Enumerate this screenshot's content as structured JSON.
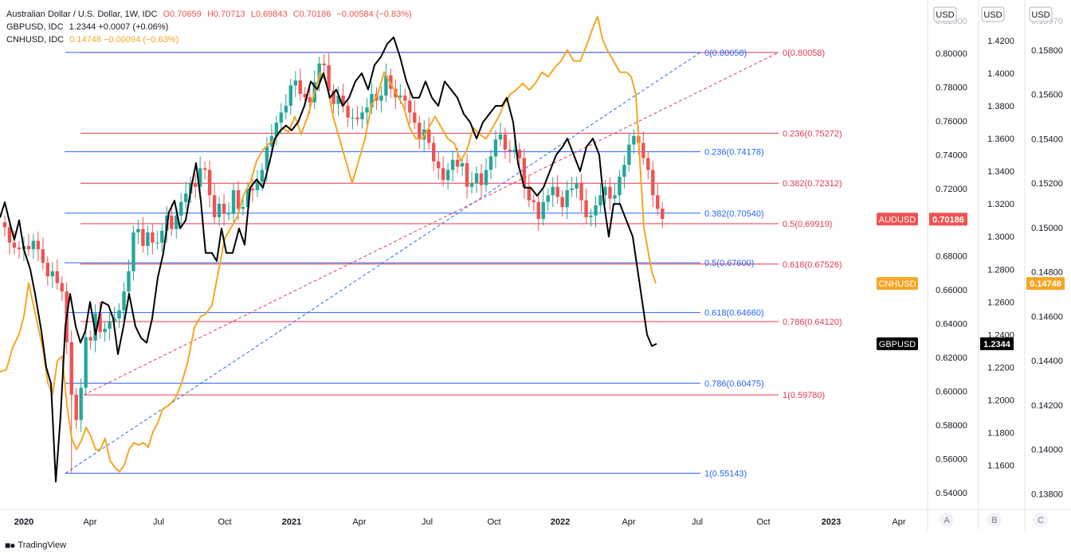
{
  "legend": {
    "row1": {
      "name": "Australian Dollar / U.S. Dollar, 1W, IDC",
      "o": "O0.70659",
      "h": "H0.70713",
      "l": "L0.69843",
      "c": "C0.70186",
      "chg": "−0.00584 (−0.83%)"
    },
    "row2": {
      "name": "GBPUSD, IDC",
      "val": "1.2344 +0.0007 (+0.06%)"
    },
    "row3": {
      "name": "CNHUSD, IDC",
      "val": "0.14748 −0.00094 (−0.63%)"
    }
  },
  "axis_units": [
    "USD",
    "USD",
    "USD"
  ],
  "scale_buttons": [
    "A",
    "B",
    "C"
  ],
  "footer": {
    "brand": "TradingView"
  },
  "colors": {
    "up": "#26a69a",
    "down": "#ef5350",
    "gbp": "#000000",
    "cnh": "#f5a623",
    "fib_red": "#e53951",
    "fib_blue": "#2962ff"
  },
  "chart_data": {
    "type": "candlestick-with-lines",
    "x_ticks": [
      "2020",
      "Apr",
      "Jul",
      "Oct",
      "2021",
      "Apr",
      "Jul",
      "Oct",
      "2022",
      "Apr",
      "Jul",
      "Oct",
      "2023",
      "Apr"
    ],
    "axes": {
      "A": {
        "range": [
          0.53,
          0.825
        ],
        "ticks": [
          "0.80000",
          "0.78000",
          "0.76000",
          "0.74000",
          "0.72000",
          "0.70000",
          "0.68000",
          "0.66000",
          "0.64000",
          "0.62000",
          "0.60000",
          "0.58000",
          "0.56000",
          "0.54000"
        ],
        "top_label": "0.82000"
      },
      "B": {
        "range": [
          1.133,
          1.438
        ],
        "ticks": [
          "1.4200",
          "1.4000",
          "1.3800",
          "1.3600",
          "1.3400",
          "1.3200",
          "1.3000",
          "1.2800",
          "1.2600",
          "1.2400",
          "1.2200",
          "1.2000",
          "1.1800",
          "1.1600"
        ]
      },
      "C": {
        "range": [
          0.1373,
          0.15975
        ],
        "ticks": [
          "0.15800",
          "0.15600",
          "0.15400",
          "0.15200",
          "0.15000",
          "0.14800",
          "0.14600",
          "0.14400",
          "0.14200",
          "0.14000",
          "0.13800"
        ],
        "top_label": "0.15970"
      }
    },
    "last_labels": [
      {
        "name": "AUDUSD",
        "value": "0.70186",
        "axis": "A",
        "y": 0.70186,
        "color": "#ef5350"
      },
      {
        "name": "CNHUSD",
        "value": "0.14748",
        "axis": "C",
        "y": 0.14748,
        "color": "#f5a623"
      },
      {
        "name": "GBPUSD",
        "value": "1.2344",
        "axis": "B",
        "y": 1.2344,
        "color": "#000000"
      }
    ],
    "fib_red": [
      {
        "level": 0,
        "price": 0.80058,
        "label": "0(0.80058)"
      },
      {
        "level": 0.236,
        "price": 0.75272,
        "label": "0.236(0.75272)"
      },
      {
        "level": 0.382,
        "price": 0.72312,
        "label": "0.382(0.72312)"
      },
      {
        "level": 0.5,
        "price": 0.69919,
        "label": "0.5(0.69919)"
      },
      {
        "level": 0.618,
        "price": 0.67526,
        "label": "0.618(0.67526)"
      },
      {
        "level": 0.786,
        "price": 0.6412,
        "label": "0.786(0.64120)"
      },
      {
        "level": 1,
        "price": 0.5978,
        "label": "1(0.59780)"
      }
    ],
    "fib_blue": [
      {
        "level": 0,
        "price": 0.80058,
        "label": "0(0.80058)"
      },
      {
        "level": 0.236,
        "price": 0.74178,
        "label": "0.236(0.74178)"
      },
      {
        "level": 0.382,
        "price": 0.7054,
        "label": "0.382(0.70540)"
      },
      {
        "level": 0.5,
        "price": 0.676,
        "label": "0.5(0.67600)"
      },
      {
        "level": 0.618,
        "price": 0.6466,
        "label": "0.618(0.64660)"
      },
      {
        "level": 0.786,
        "price": 0.60475,
        "label": "0.786(0.60475)"
      },
      {
        "level": 1,
        "price": 0.55143,
        "label": "1(0.55143)"
      }
    ],
    "audusd_closes": [
      0.697,
      0.688,
      0.685,
      0.684,
      0.686,
      0.684,
      0.689,
      0.684,
      0.676,
      0.668,
      0.671,
      0.664,
      0.659,
      0.629,
      0.598,
      0.583,
      0.602,
      0.632,
      0.63,
      0.646,
      0.635,
      0.637,
      0.641,
      0.643,
      0.648,
      0.659,
      0.671,
      0.694,
      0.696,
      0.686,
      0.694,
      0.688,
      0.688,
      0.695,
      0.704,
      0.696,
      0.704,
      0.712,
      0.717,
      0.723,
      0.721,
      0.732,
      0.731,
      0.716,
      0.703,
      0.711,
      0.705,
      0.705,
      0.719,
      0.708,
      0.709,
      0.72,
      0.719,
      0.724,
      0.731,
      0.745,
      0.751,
      0.759,
      0.765,
      0.769,
      0.781,
      0.784,
      0.776,
      0.774,
      0.771,
      0.783,
      0.794,
      0.793,
      0.778,
      0.77,
      0.775,
      0.769,
      0.762,
      0.762,
      0.761,
      0.765,
      0.768,
      0.776,
      0.772,
      0.775,
      0.787,
      0.779,
      0.774,
      0.775,
      0.772,
      0.765,
      0.759,
      0.749,
      0.755,
      0.747,
      0.736,
      0.732,
      0.725,
      0.731,
      0.737,
      0.733,
      0.735,
      0.721,
      0.723,
      0.729,
      0.722,
      0.731,
      0.739,
      0.749,
      0.752,
      0.743,
      0.742,
      0.743,
      0.738,
      0.721,
      0.713,
      0.712,
      0.702,
      0.712,
      0.716,
      0.721,
      0.715,
      0.709,
      0.719,
      0.72,
      0.723,
      0.713,
      0.703,
      0.704,
      0.71,
      0.716,
      0.721,
      0.714,
      0.716,
      0.727,
      0.734,
      0.746,
      0.751,
      0.747,
      0.738,
      0.731,
      0.716,
      0.708,
      0.702
    ],
    "gbpusd": [
      [
        0,
        1.3116
      ],
      [
        6,
        1.321
      ],
      [
        12,
        1.309
      ],
      [
        18,
        1.298
      ],
      [
        24,
        1.31
      ],
      [
        30,
        1.292
      ],
      [
        38,
        1.28
      ],
      [
        44,
        1.265
      ],
      [
        52,
        1.242
      ],
      [
        58,
        1.22
      ],
      [
        64,
        1.21
      ],
      [
        70,
        1.15
      ],
      [
        76,
        1.19
      ],
      [
        82,
        1.245
      ],
      [
        88,
        1.265
      ],
      [
        95,
        1.245
      ],
      [
        101,
        1.235
      ],
      [
        107,
        1.242
      ],
      [
        113,
        1.26
      ],
      [
        120,
        1.24
      ],
      [
        128,
        1.26
      ],
      [
        136,
        1.258
      ],
      [
        142,
        1.25
      ],
      [
        148,
        1.228
      ],
      [
        155,
        1.245
      ],
      [
        162,
        1.265
      ],
      [
        170,
        1.245
      ],
      [
        177,
        1.238
      ],
      [
        184,
        1.235
      ],
      [
        191,
        1.25
      ],
      [
        198,
        1.275
      ],
      [
        205,
        1.29
      ],
      [
        212,
        1.315
      ],
      [
        219,
        1.322
      ],
      [
        226,
        1.305
      ],
      [
        233,
        1.31
      ],
      [
        240,
        1.33
      ],
      [
        246,
        1.345
      ],
      [
        252,
        1.322
      ],
      [
        258,
        1.29
      ],
      [
        266,
        1.29
      ],
      [
        272,
        1.285
      ],
      [
        278,
        1.305
      ],
      [
        284,
        1.29
      ],
      [
        292,
        1.29
      ],
      [
        300,
        1.305
      ],
      [
        307,
        1.295
      ],
      [
        314,
        1.33
      ],
      [
        322,
        1.335
      ],
      [
        330,
        1.33
      ],
      [
        338,
        1.345
      ],
      [
        345,
        1.36
      ],
      [
        352,
        1.365
      ],
      [
        359,
        1.368
      ],
      [
        366,
        1.365
      ],
      [
        374,
        1.37
      ],
      [
        382,
        1.38
      ],
      [
        390,
        1.395
      ],
      [
        398,
        1.39
      ],
      [
        406,
        1.4
      ],
      [
        414,
        1.385
      ],
      [
        422,
        1.39
      ],
      [
        430,
        1.38
      ],
      [
        438,
        1.385
      ],
      [
        446,
        1.395
      ],
      [
        454,
        1.4
      ],
      [
        462,
        1.39
      ],
      [
        470,
        1.405
      ],
      [
        478,
        1.41
      ],
      [
        486,
        1.418
      ],
      [
        494,
        1.422
      ],
      [
        502,
        1.41
      ],
      [
        510,
        1.395
      ],
      [
        518,
        1.385
      ],
      [
        526,
        1.385
      ],
      [
        534,
        1.395
      ],
      [
        542,
        1.385
      ],
      [
        550,
        1.38
      ],
      [
        558,
        1.395
      ],
      [
        566,
        1.39
      ],
      [
        574,
        1.385
      ],
      [
        582,
        1.375
      ],
      [
        590,
        1.37
      ],
      [
        598,
        1.36
      ],
      [
        606,
        1.37
      ],
      [
        614,
        1.375
      ],
      [
        622,
        1.38
      ],
      [
        630,
        1.38
      ],
      [
        636,
        1.385
      ],
      [
        644,
        1.37
      ],
      [
        650,
        1.345
      ],
      [
        658,
        1.33
      ],
      [
        666,
        1.33
      ],
      [
        674,
        1.325
      ],
      [
        682,
        1.33
      ],
      [
        690,
        1.34
      ],
      [
        698,
        1.35
      ],
      [
        706,
        1.355
      ],
      [
        712,
        1.36
      ],
      [
        720,
        1.35
      ],
      [
        728,
        1.34
      ],
      [
        736,
        1.355
      ],
      [
        744,
        1.36
      ],
      [
        752,
        1.35
      ],
      [
        758,
        1.32
      ],
      [
        764,
        1.3
      ],
      [
        770,
        1.32
      ],
      [
        778,
        1.32
      ],
      [
        786,
        1.31
      ],
      [
        794,
        1.3
      ],
      [
        800,
        1.28
      ],
      [
        806,
        1.26
      ],
      [
        812,
        1.24
      ],
      [
        818,
        1.233
      ],
      [
        824,
        1.2344
      ]
    ],
    "cnhusd": [
      [
        0,
        0.1435
      ],
      [
        8,
        0.1436
      ],
      [
        16,
        0.1446
      ],
      [
        24,
        0.1452
      ],
      [
        30,
        0.146
      ],
      [
        36,
        0.1475
      ],
      [
        42,
        0.1465
      ],
      [
        48,
        0.1455
      ],
      [
        54,
        0.1445
      ],
      [
        60,
        0.143
      ],
      [
        66,
        0.1425
      ],
      [
        72,
        0.144
      ],
      [
        78,
        0.1442
      ],
      [
        84,
        0.142
      ],
      [
        90,
        0.1405
      ],
      [
        96,
        0.14
      ],
      [
        102,
        0.1404
      ],
      [
        108,
        0.141
      ],
      [
        114,
        0.1406
      ],
      [
        120,
        0.14
      ],
      [
        126,
        0.14
      ],
      [
        132,
        0.1405
      ],
      [
        138,
        0.1395
      ],
      [
        144,
        0.1392
      ],
      [
        150,
        0.139
      ],
      [
        156,
        0.1393
      ],
      [
        162,
        0.14
      ],
      [
        168,
        0.1403
      ],
      [
        174,
        0.1402
      ],
      [
        180,
        0.1403
      ],
      [
        186,
        0.1401
      ],
      [
        192,
        0.1408
      ],
      [
        198,
        0.1412
      ],
      [
        204,
        0.1418
      ],
      [
        212,
        0.142
      ],
      [
        220,
        0.1423
      ],
      [
        228,
        0.143
      ],
      [
        236,
        0.144
      ],
      [
        244,
        0.1455
      ],
      [
        252,
        0.146
      ],
      [
        258,
        0.1461
      ],
      [
        266,
        0.1465
      ],
      [
        274,
        0.148
      ],
      [
        282,
        0.1495
      ],
      [
        290,
        0.15
      ],
      [
        298,
        0.1505
      ],
      [
        306,
        0.1515
      ],
      [
        314,
        0.152
      ],
      [
        322,
        0.153
      ],
      [
        330,
        0.1535
      ],
      [
        338,
        0.1538
      ],
      [
        346,
        0.154
      ],
      [
        354,
        0.1545
      ],
      [
        362,
        0.1543
      ],
      [
        370,
        0.155
      ],
      [
        378,
        0.1542
      ],
      [
        386,
        0.155
      ],
      [
        394,
        0.156
      ],
      [
        402,
        0.157
      ],
      [
        410,
        0.1565
      ],
      [
        418,
        0.155
      ],
      [
        426,
        0.154
      ],
      [
        434,
        0.153
      ],
      [
        442,
        0.152
      ],
      [
        450,
        0.153
      ],
      [
        458,
        0.154
      ],
      [
        466,
        0.1555
      ],
      [
        474,
        0.156
      ],
      [
        482,
        0.157
      ],
      [
        490,
        0.1565
      ],
      [
        498,
        0.156
      ],
      [
        506,
        0.1555
      ],
      [
        514,
        0.1545
      ],
      [
        522,
        0.154
      ],
      [
        530,
        0.154
      ],
      [
        538,
        0.1545
      ],
      [
        546,
        0.155
      ],
      [
        554,
        0.1545
      ],
      [
        562,
        0.154
      ],
      [
        570,
        0.1538
      ],
      [
        578,
        0.153
      ],
      [
        586,
        0.1535
      ],
      [
        594,
        0.1545
      ],
      [
        602,
        0.1542
      ],
      [
        610,
        0.154
      ],
      [
        618,
        0.1545
      ],
      [
        626,
        0.155
      ],
      [
        632,
        0.1555
      ],
      [
        640,
        0.156
      ],
      [
        648,
        0.1562
      ],
      [
        656,
        0.1565
      ],
      [
        664,
        0.1562
      ],
      [
        672,
        0.1565
      ],
      [
        680,
        0.157
      ],
      [
        688,
        0.1568
      ],
      [
        696,
        0.1572
      ],
      [
        704,
        0.1575
      ],
      [
        712,
        0.158
      ],
      [
        720,
        0.1575
      ],
      [
        728,
        0.1575
      ],
      [
        736,
        0.1582
      ],
      [
        744,
        0.159
      ],
      [
        750,
        0.1595
      ],
      [
        756,
        0.1585
      ],
      [
        762,
        0.158
      ],
      [
        770,
        0.1575
      ],
      [
        778,
        0.157
      ],
      [
        786,
        0.157
      ],
      [
        792,
        0.1568
      ],
      [
        798,
        0.156
      ],
      [
        803,
        0.153
      ],
      [
        808,
        0.15
      ],
      [
        813,
        0.149
      ],
      [
        818,
        0.148
      ],
      [
        823,
        0.14748
      ]
    ]
  }
}
